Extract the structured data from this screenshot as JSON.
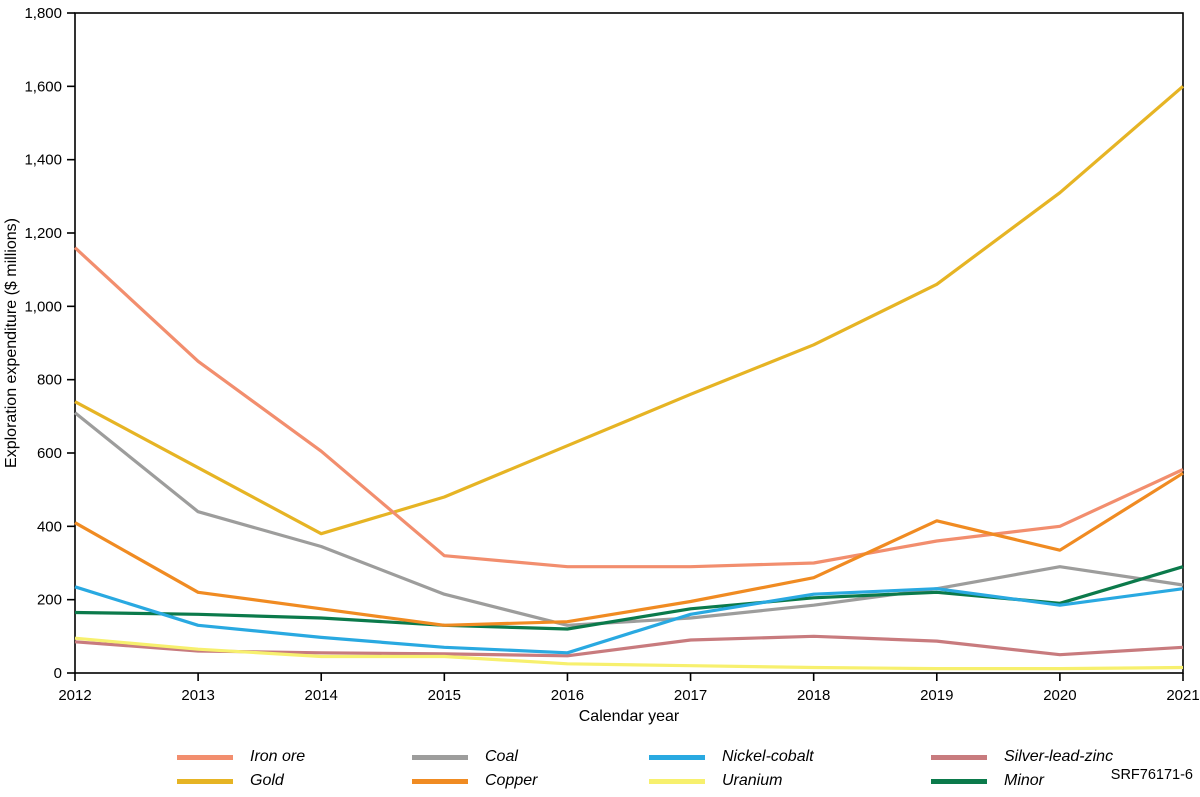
{
  "figure": {
    "footnote": "SRF76171-6"
  },
  "chart_data": {
    "type": "line",
    "title": "",
    "xlabel": "Calendar year",
    "ylabel": "Exploration expenditure ($ millions)",
    "ylim": [
      0,
      1800
    ],
    "y_tick_step": 200,
    "y_tick_labels": [
      "0",
      "200",
      "400",
      "600",
      "800",
      "1,000",
      "1,200",
      "1,400",
      "1,600",
      "1,800"
    ],
    "x": [
      2012,
      2013,
      2014,
      2015,
      2016,
      2017,
      2018,
      2019,
      2020,
      2021
    ],
    "x_tick_labels": [
      "2012",
      "2013",
      "2014",
      "2015",
      "2016",
      "2017",
      "2018",
      "2019",
      "2020",
      "2021"
    ],
    "grid": false,
    "legend_position": "bottom",
    "axis_color": "#000000",
    "series": [
      {
        "name": "Iron ore",
        "color": "#F28E6E",
        "values": [
          1160,
          850,
          605,
          320,
          290,
          290,
          300,
          360,
          400,
          555
        ]
      },
      {
        "name": "Gold",
        "color": "#E6B424",
        "values": [
          740,
          560,
          380,
          480,
          620,
          760,
          895,
          1060,
          1310,
          1600
        ]
      },
      {
        "name": "Coal",
        "color": "#9D9D9C",
        "values": [
          710,
          440,
          345,
          215,
          130,
          150,
          185,
          230,
          290,
          240
        ]
      },
      {
        "name": "Copper",
        "color": "#F08B22",
        "values": [
          410,
          220,
          175,
          130,
          140,
          195,
          260,
          415,
          335,
          545
        ]
      },
      {
        "name": "Nickel-cobalt",
        "color": "#29A9E1",
        "values": [
          235,
          130,
          97,
          70,
          55,
          160,
          215,
          230,
          185,
          230
        ]
      },
      {
        "name": "Uranium",
        "color": "#F7F06E",
        "values": [
          95,
          65,
          45,
          45,
          25,
          20,
          15,
          12,
          12,
          15
        ]
      },
      {
        "name": "Silver-lead-zinc",
        "color": "#C87B7E",
        "values": [
          85,
          60,
          55,
          52,
          47,
          90,
          100,
          87,
          50,
          70
        ]
      },
      {
        "name": "Minor",
        "color": "#0B7A4B",
        "values": [
          165,
          160,
          150,
          130,
          120,
          175,
          205,
          220,
          190,
          290
        ]
      }
    ],
    "legend_order": [
      "Iron ore",
      "Coal",
      "Nickel-cobalt",
      "Silver-lead-zinc",
      "Gold",
      "Copper",
      "Uranium",
      "Minor"
    ],
    "draw_order": [
      "Coal",
      "Silver-lead-zinc",
      "Uranium",
      "Minor",
      "Nickel-cobalt",
      "Gold",
      "Iron ore",
      "Copper"
    ]
  }
}
